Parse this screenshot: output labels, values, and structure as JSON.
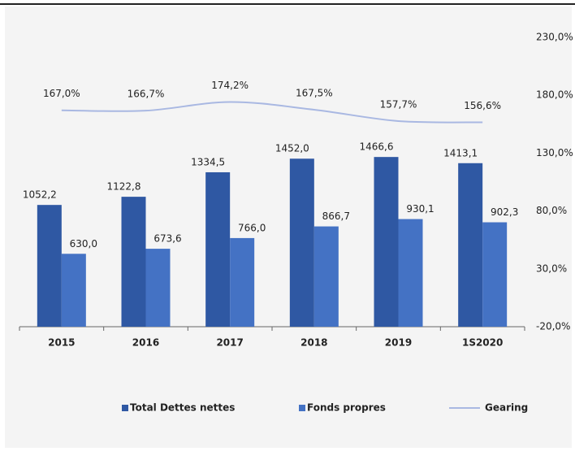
{
  "chart_data": {
    "type": "bar",
    "categories": [
      "2015",
      "2016",
      "2017",
      "2018",
      "2019",
      "1S2020"
    ],
    "series": [
      {
        "name": "Total Dettes nettes",
        "color": "#2f58a3",
        "values": [
          1052.2,
          1122.8,
          1334.5,
          1452.0,
          1466.6,
          1413.1
        ],
        "value_labels": [
          "1052,2",
          "1122,8",
          "1334,5",
          "1452,0",
          "1466,6",
          "1413,1"
        ]
      },
      {
        "name": "Fonds propres",
        "color": "#4472c4",
        "values": [
          630.0,
          673.6,
          766.0,
          866.7,
          930.1,
          902.3
        ],
        "value_labels": [
          "630,0",
          "673,6",
          "766,0",
          "866,7",
          "930,1",
          "902,3"
        ]
      },
      {
        "name": "Gearing",
        "color": "#a9b8e2",
        "axis": "y2",
        "type": "line",
        "values": [
          167.0,
          166.7,
          174.2,
          167.5,
          157.7,
          156.6
        ],
        "value_labels": [
          "167,0%",
          "166,7%",
          "174,2%",
          "167,5%",
          "157,7%",
          "156,6%"
        ]
      }
    ],
    "ylim": [
      0,
      2500
    ],
    "y2lim": [
      -20,
      230
    ],
    "y2ticks": [
      {
        "value": -20,
        "label": "-20,0%"
      },
      {
        "value": 30,
        "label": "30,0%"
      },
      {
        "value": 80,
        "label": "80,0%"
      },
      {
        "value": 130,
        "label": "130,0%"
      },
      {
        "value": 180,
        "label": "180,0%"
      },
      {
        "value": 230,
        "label": "230,0%"
      }
    ],
    "legend": "bottom"
  }
}
